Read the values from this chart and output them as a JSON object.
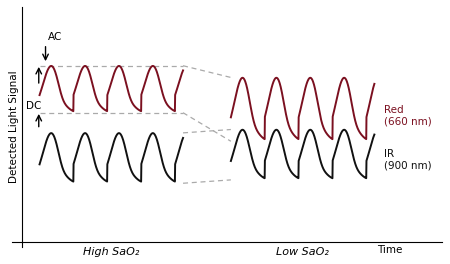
{
  "ylabel": "Detected Light Signal",
  "xlabel": "Time",
  "red_label": "Red\n(660 nm)",
  "ir_label": "IR\n(900 nm)",
  "ac_label": "AC",
  "dc_label": "DC",
  "high_sao2_label": "High SaO₂",
  "low_sao2_label": "Low SaO₂",
  "red_color": "#7B1020",
  "ir_color": "#111111",
  "dashed_color": "#aaaaaa",
  "background_color": "#ffffff",
  "red_high_amp": 0.28,
  "red_low_amp": 0.38,
  "ir_high_amp": 0.3,
  "ir_low_amp": 0.3,
  "red_dc": 0.72,
  "ir_dc": 0.3,
  "red_low_dc": 0.55,
  "ir_low_dc": 0.32,
  "figsize": [
    4.5,
    2.64
  ],
  "dpi": 100
}
